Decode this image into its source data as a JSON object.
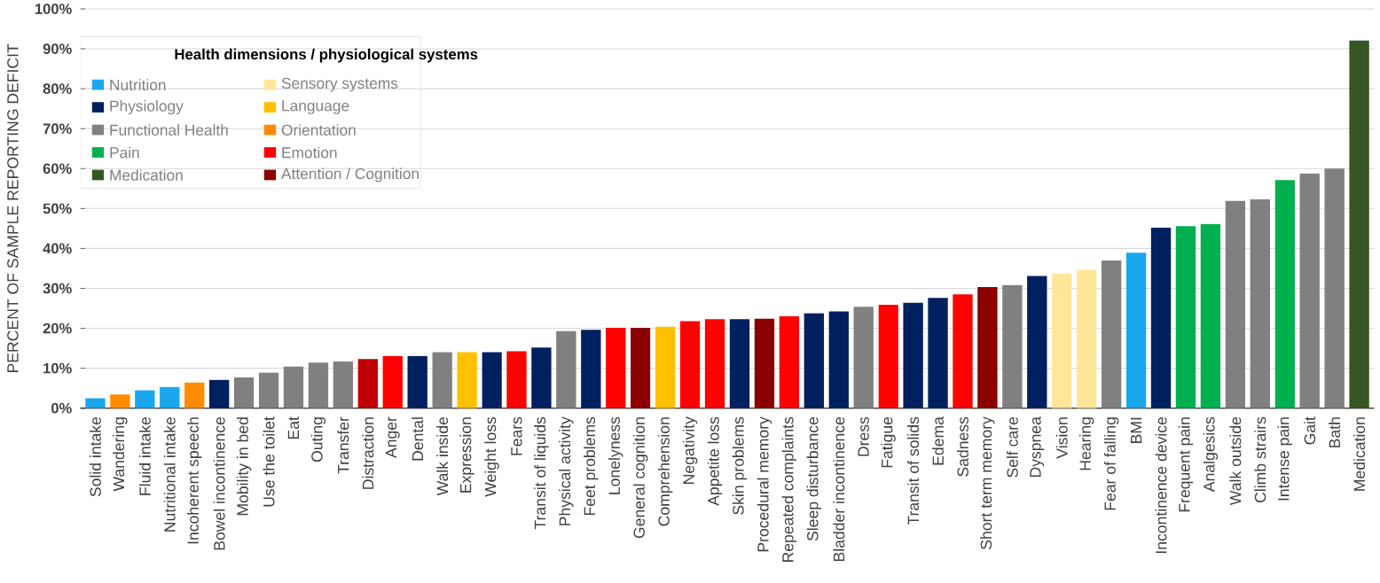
{
  "chart_data": {
    "type": "bar",
    "ylabel": "PERCENT OF SAMPLE REPORTING DEFICIT",
    "legend_title": "Health dimensions / physiological systems",
    "legend": "top left",
    "grid": "y",
    "ylim": [
      0,
      100
    ],
    "yticks": [
      {
        "value": 0,
        "label": "0%"
      },
      {
        "value": 10,
        "label": "10%"
      },
      {
        "value": 20,
        "label": "20%"
      },
      {
        "value": 30,
        "label": "30%"
      },
      {
        "value": 40,
        "label": "40%"
      },
      {
        "value": 50,
        "label": "50%"
      },
      {
        "value": 60,
        "label": "60%"
      },
      {
        "value": 70,
        "label": "70%"
      },
      {
        "value": 80,
        "label": "80%"
      },
      {
        "value": 90,
        "label": "90%"
      },
      {
        "value": 100,
        "label": "100%"
      }
    ],
    "categories": [
      "Solid intake",
      "Wandering",
      "Fluid intake",
      "Nutritional intake",
      "Incoherent speech",
      "Bowel incontinence",
      "Mobility in bed",
      "Use the toilet",
      "Eat",
      "Outing",
      "Transfer",
      "Distraction",
      "Anger",
      "Dental",
      "Walk inside",
      "Expression",
      "Weight loss",
      "Fears",
      "Transit of liquids",
      "Physical activity",
      "Feet problems",
      "Lonelyness",
      "General cognition",
      "Comprehension",
      "Negativity",
      "Appetite loss",
      "Skin problems",
      "Procedural memory",
      "Repeated complaints",
      "Sleep disturbance",
      "Bladder incontinence",
      "Dress",
      "Fatigue",
      "Transit of solids",
      "Edema",
      "Sadness",
      "Short term memory",
      "Self care",
      "Dyspnea",
      "Vision",
      "Hearing",
      "Fear of falling",
      "BMI",
      "Incontinence device",
      "Frequent pain",
      "Analgesics",
      "Walk outside",
      "Climb strairs",
      "Intense pain",
      "Gait",
      "Bath",
      "Medication"
    ],
    "series": [
      {
        "name": "Nutrition",
        "color": "#1aa7ee",
        "values": [
          2.5,
          null,
          4.5,
          5.3,
          null,
          null,
          null,
          null,
          null,
          null,
          null,
          null,
          null,
          null,
          null,
          null,
          null,
          null,
          null,
          null,
          null,
          null,
          null,
          null,
          null,
          null,
          null,
          null,
          null,
          null,
          null,
          null,
          null,
          null,
          null,
          null,
          null,
          null,
          null,
          null,
          null,
          null,
          38.9,
          null,
          null,
          null,
          null,
          null,
          null,
          null,
          null,
          null
        ]
      },
      {
        "name": "Physiology",
        "color": "#002060",
        "values": [
          null,
          null,
          null,
          null,
          null,
          7.1,
          null,
          null,
          null,
          null,
          null,
          null,
          null,
          13.1,
          null,
          null,
          14.0,
          null,
          15.2,
          null,
          19.6,
          null,
          null,
          null,
          null,
          null,
          22.3,
          null,
          null,
          23.8,
          24.2,
          null,
          null,
          26.4,
          27.6,
          null,
          null,
          null,
          33.1,
          null,
          null,
          null,
          null,
          45.2,
          null,
          null,
          null,
          null,
          null,
          null,
          null,
          null
        ]
      },
      {
        "name": "Functional Health",
        "color": "#808080",
        "values": [
          null,
          null,
          null,
          null,
          null,
          null,
          7.7,
          8.9,
          10.4,
          11.4,
          11.7,
          null,
          null,
          null,
          14.0,
          null,
          null,
          null,
          null,
          19.3,
          null,
          null,
          null,
          null,
          null,
          null,
          null,
          null,
          null,
          null,
          null,
          25.4,
          null,
          null,
          null,
          null,
          null,
          30.8,
          null,
          null,
          null,
          37.0,
          null,
          null,
          null,
          null,
          51.9,
          52.3,
          null,
          58.8,
          60.0,
          null
        ]
      },
      {
        "name": "Pain",
        "color": "#00b050",
        "values": [
          null,
          null,
          null,
          null,
          null,
          null,
          null,
          null,
          null,
          null,
          null,
          null,
          null,
          null,
          null,
          null,
          null,
          null,
          null,
          null,
          null,
          null,
          null,
          null,
          null,
          null,
          null,
          null,
          null,
          null,
          null,
          null,
          null,
          null,
          null,
          null,
          null,
          null,
          null,
          null,
          null,
          null,
          null,
          null,
          45.6,
          46.1,
          null,
          null,
          57.1,
          null,
          null,
          null
        ]
      },
      {
        "name": "Medication",
        "color": "#375623",
        "values": [
          null,
          null,
          null,
          null,
          null,
          null,
          null,
          null,
          null,
          null,
          null,
          null,
          null,
          null,
          null,
          null,
          null,
          null,
          null,
          null,
          null,
          null,
          null,
          null,
          null,
          null,
          null,
          null,
          null,
          null,
          null,
          null,
          null,
          null,
          null,
          null,
          null,
          null,
          null,
          null,
          null,
          null,
          null,
          null,
          null,
          null,
          null,
          null,
          null,
          null,
          null,
          92.1
        ]
      },
      {
        "name": "Sensory systems",
        "color": "#ffe699",
        "values": [
          null,
          null,
          null,
          null,
          null,
          null,
          null,
          null,
          null,
          null,
          null,
          null,
          null,
          null,
          null,
          null,
          null,
          null,
          null,
          null,
          null,
          null,
          null,
          null,
          null,
          null,
          null,
          null,
          null,
          null,
          null,
          null,
          null,
          null,
          null,
          null,
          null,
          null,
          null,
          33.7,
          34.6,
          null,
          null,
          null,
          null,
          null,
          null,
          null,
          null,
          null,
          null,
          null
        ]
      },
      {
        "name": "Language",
        "color": "#ffc000",
        "values": [
          null,
          null,
          null,
          null,
          null,
          null,
          null,
          null,
          null,
          null,
          null,
          null,
          null,
          null,
          null,
          14.0,
          null,
          null,
          null,
          null,
          null,
          null,
          null,
          20.4,
          null,
          null,
          null,
          null,
          null,
          null,
          null,
          null,
          null,
          null,
          null,
          null,
          null,
          null,
          null,
          null,
          null,
          null,
          null,
          null,
          null,
          null,
          null,
          null,
          null,
          null,
          null,
          null
        ]
      },
      {
        "name": "Orientation",
        "color": "#ff8c00",
        "values": [
          null,
          3.4,
          null,
          null,
          6.4,
          null,
          null,
          null,
          null,
          null,
          null,
          null,
          null,
          null,
          null,
          null,
          null,
          null,
          null,
          null,
          null,
          null,
          null,
          null,
          null,
          null,
          null,
          null,
          null,
          null,
          null,
          null,
          null,
          null,
          null,
          null,
          null,
          null,
          null,
          null,
          null,
          null,
          null,
          null,
          null,
          null,
          null,
          null,
          null,
          null,
          null,
          null
        ]
      },
      {
        "name": "Emotion",
        "color": "#ff0000",
        "values": [
          null,
          null,
          null,
          null,
          null,
          null,
          null,
          null,
          null,
          null,
          null,
          null,
          13.1,
          null,
          null,
          null,
          null,
          14.3,
          null,
          null,
          null,
          20.1,
          null,
          null,
          21.8,
          22.3,
          null,
          null,
          23.0,
          null,
          null,
          null,
          25.9,
          null,
          null,
          28.5,
          null,
          null,
          null,
          null,
          null,
          null,
          null,
          null,
          null,
          null,
          null,
          null,
          null,
          null,
          null,
          null
        ]
      },
      {
        "name": "Attention / Cognition",
        "color": "#8b0000",
        "colors": [
          null,
          null,
          null,
          null,
          null,
          null,
          null,
          null,
          null,
          null,
          null,
          "#c00000",
          null,
          null,
          null,
          null,
          null,
          null,
          null,
          null,
          null,
          null,
          "#8b0000",
          null,
          null,
          null,
          null,
          "#8b0000",
          null,
          null,
          null,
          null,
          null,
          null,
          null,
          null,
          "#8b0000",
          null,
          null,
          null,
          null,
          null,
          null,
          null,
          null,
          null,
          null,
          null,
          null,
          null,
          null,
          null
        ],
        "values": [
          null,
          null,
          null,
          null,
          null,
          null,
          null,
          null,
          null,
          null,
          null,
          12.3,
          null,
          null,
          null,
          null,
          null,
          null,
          null,
          null,
          null,
          null,
          20.1,
          null,
          null,
          null,
          null,
          22.4,
          null,
          null,
          null,
          null,
          null,
          null,
          null,
          null,
          30.3,
          null,
          null,
          null,
          null,
          null,
          null,
          null,
          null,
          null,
          null,
          null,
          null,
          null,
          null,
          null
        ]
      }
    ]
  }
}
